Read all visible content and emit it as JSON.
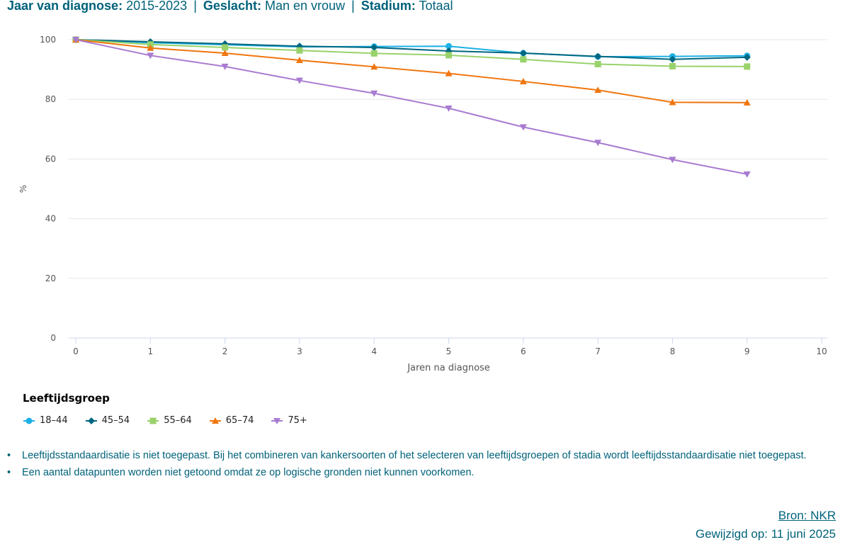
{
  "header": {
    "year_label": "Jaar van diagnose:",
    "year_value": "2015-2023",
    "sex_label": "Geslacht:",
    "sex_value": "Man en vrouw",
    "stage_label": "Stadium:",
    "stage_value": "Totaal",
    "separator": "|"
  },
  "legend": {
    "title": "Leeftijdsgroep"
  },
  "notes": [
    "Leeftijdsstandaardisatie is niet toegepast. Bij het combineren van kankersoorten of het selecteren van leeftijdsgroepen of stadia wordt leeftijdsstandaardisatie niet toegepast.",
    "Een aantal datapunten worden niet getoond omdat ze op logische gronden niet kunnen voorkomen."
  ],
  "source": {
    "link_label": "Bron: NKR",
    "modified": "Gewijzigd op: 11 juni 2025"
  },
  "chart_data": {
    "type": "line",
    "xlabel": "Jaren na diagnose",
    "ylabel": "%",
    "xlim": [
      0,
      10
    ],
    "ylim": [
      0,
      100
    ],
    "xticks": [
      0,
      1,
      2,
      3,
      4,
      5,
      6,
      7,
      8,
      9,
      10
    ],
    "yticks": [
      0,
      20,
      40,
      60,
      80,
      100
    ],
    "grid": "horizontal",
    "legend_position": "bottom-left",
    "x": [
      0,
      1,
      2,
      3,
      4,
      5,
      6,
      7,
      8,
      9
    ],
    "series": [
      {
        "name": "18-44",
        "color": "#1eb1e6",
        "marker": "circle",
        "values": [
          100,
          99.0,
          98.3,
          97.6,
          97.7,
          97.8,
          95.5,
          94.3,
          94.4,
          94.6
        ]
      },
      {
        "name": "45-54",
        "color": "#006780",
        "marker": "diamond",
        "values": [
          100,
          99.3,
          98.6,
          97.8,
          97.4,
          96.2,
          95.5,
          94.4,
          93.4,
          94.1
        ]
      },
      {
        "name": "55-64",
        "color": "#99d26b",
        "marker": "square",
        "values": [
          100,
          98.4,
          97.4,
          96.4,
          95.4,
          94.8,
          93.4,
          91.8,
          91.1,
          91.0
        ]
      },
      {
        "name": "65-74",
        "color": "#f0760f",
        "marker": "triangle",
        "values": [
          100,
          97.2,
          95.5,
          93.1,
          90.9,
          88.7,
          86.0,
          83.1,
          79.0,
          78.9
        ]
      },
      {
        "name": "75+",
        "color": "#a87bd1",
        "marker": "triangle-down",
        "values": [
          100,
          94.7,
          91.0,
          86.3,
          82.0,
          77.0,
          70.7,
          65.5,
          59.8,
          54.9
        ]
      }
    ]
  }
}
